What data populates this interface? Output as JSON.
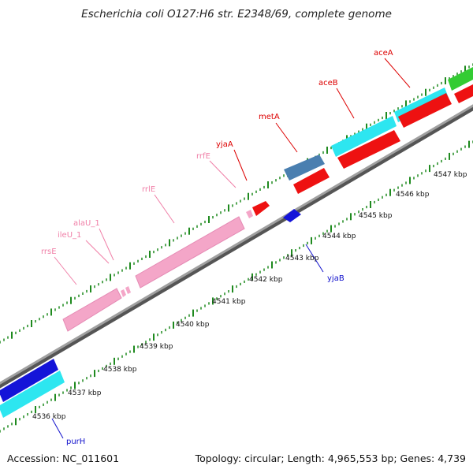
{
  "title": "Escherichia coli O127:H6 str. E2348/69, complete genome",
  "footer": {
    "accession": "Accession: NC_011601",
    "summary": "Topology: circular; Length: 4,965,553 bp; Genes: 4,739"
  },
  "colors": {
    "backbone": "#808080",
    "rrna": "#f4a6c8",
    "forward_cds": "#2de6f0",
    "reverse_cds": "#ee1111",
    "blue_cds": "#1414d8",
    "steel_cds": "#4a7fb0",
    "green_cds": "#33cc33",
    "tick": "#1f8a1f",
    "label_red": "#dd0000",
    "label_pink": "#f080a8",
    "label_blue": "#1010cc"
  },
  "scale_labels": [
    "4536 kbp",
    "4537 kbp",
    "4538 kbp",
    "4539 kbp",
    "4540 kbp",
    "4541 kbp",
    "4542 kbp",
    "4543 kbp",
    "4544 kbp",
    "4545 kbp",
    "4546 kbp",
    "4547 kbp"
  ],
  "gene_labels": [
    {
      "name": "aceA",
      "group": "red"
    },
    {
      "name": "aceB",
      "group": "red"
    },
    {
      "name": "metA",
      "group": "red"
    },
    {
      "name": "yjaA",
      "group": "red"
    },
    {
      "name": "rrfE",
      "group": "pink"
    },
    {
      "name": "rrlE",
      "group": "pink"
    },
    {
      "name": "alaU_1",
      "group": "pink"
    },
    {
      "name": "ileU_1",
      "group": "pink"
    },
    {
      "name": "rrsE",
      "group": "pink"
    },
    {
      "name": "yjaB",
      "group": "blue"
    },
    {
      "name": "purH",
      "group": "blue"
    }
  ]
}
